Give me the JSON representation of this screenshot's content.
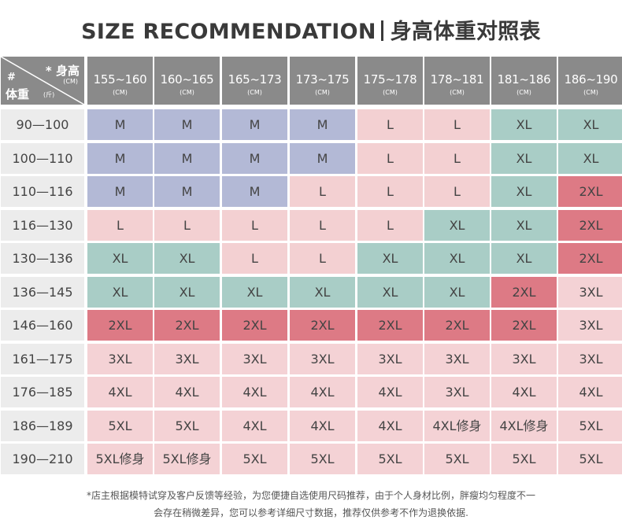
{
  "title": {
    "en": "SIZE RECOMMENDATION",
    "zh": "身高体重对照表"
  },
  "corner": {
    "hash": "#",
    "height_label": "* 身高",
    "height_unit": "(CM)",
    "weight_label": "体重",
    "weight_unit": "(斤)"
  },
  "colors": {
    "M": "#b3b9d6",
    "L": "#f3d0d2",
    "XL": "#a9cdc6",
    "2XL": "#dd7a85",
    "3XL": "#f4d2d5",
    "header": "#8a8a8a",
    "weight_col": "#ececec"
  },
  "heights": [
    {
      "range": "155~160",
      "unit": "(CM)"
    },
    {
      "range": "160~165",
      "unit": "(CM)"
    },
    {
      "range": "165~173",
      "unit": "(CM)"
    },
    {
      "range": "173~175",
      "unit": "(CM)"
    },
    {
      "range": "175~178",
      "unit": "(CM)"
    },
    {
      "range": "178~181",
      "unit": "(CM)"
    },
    {
      "range": "181~186",
      "unit": "(CM)"
    },
    {
      "range": "186~190",
      "unit": "(CM)"
    }
  ],
  "rows": [
    {
      "weight": "90—100",
      "sizes": [
        "M",
        "M",
        "M",
        "M",
        "L",
        "L",
        "XL",
        "XL"
      ]
    },
    {
      "weight": "100—110",
      "sizes": [
        "M",
        "M",
        "M",
        "M",
        "L",
        "L",
        "XL",
        "XL"
      ]
    },
    {
      "weight": "110—116",
      "sizes": [
        "M",
        "M",
        "M",
        "L",
        "L",
        "L",
        "XL",
        "2XL"
      ]
    },
    {
      "weight": "116—130",
      "sizes": [
        "L",
        "L",
        "L",
        "L",
        "L",
        "XL",
        "XL",
        "2XL"
      ]
    },
    {
      "weight": "130—136",
      "sizes": [
        "XL",
        "XL",
        "L",
        "L",
        "XL",
        "XL",
        "XL",
        "2XL"
      ]
    },
    {
      "weight": "136—145",
      "sizes": [
        "XL",
        "XL",
        "XL",
        "XL",
        "XL",
        "XL",
        "2XL",
        "3XL"
      ]
    },
    {
      "weight": "146—160",
      "sizes": [
        "2XL",
        "2XL",
        "2XL",
        "2XL",
        "2XL",
        "2XL",
        "2XL",
        "3XL"
      ]
    },
    {
      "weight": "161—175",
      "sizes": [
        "3XL",
        "3XL",
        "3XL",
        "3XL",
        "3XL",
        "3XL",
        "3XL",
        "3XL"
      ]
    },
    {
      "weight": "176—185",
      "sizes": [
        "4XL",
        "4XL",
        "4XL",
        "4XL",
        "4XL",
        "3XL",
        "4XL",
        "4XL"
      ]
    },
    {
      "weight": "186—189",
      "sizes": [
        "5XL",
        "5XL",
        "4XL",
        "4XL",
        "4XL",
        "4XL修身",
        "4XL修身",
        "5XL"
      ]
    },
    {
      "weight": "190—210",
      "sizes": [
        "5XL修身",
        "5XL修身",
        "5XL",
        "5XL",
        "5XL",
        "5XL",
        "5XL",
        "5XL"
      ]
    }
  ],
  "footnote": [
    "*店主根据模特试穿及客户反馈等经验，为您便捷自选使用尺码推荐，由于个人身材比例，胖瘦均匀程度不一",
    "会存在稍微差异，您可以参考详细尺寸数据，推荐仅供参考不作为退换依据."
  ]
}
